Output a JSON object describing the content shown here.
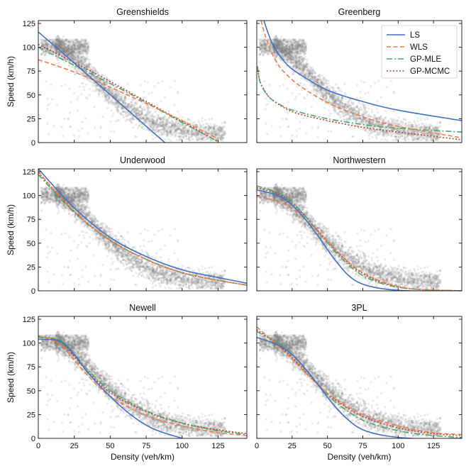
{
  "chart_data": {
    "type": "scatter",
    "layout": "3x2 grid of panels",
    "xlabel": "Density (veh/km)",
    "ylabel": "Speed (km/h)",
    "xlim": [
      0,
      145
    ],
    "ylim": [
      0,
      128
    ],
    "x_ticks": [
      0,
      25,
      50,
      75,
      100,
      125
    ],
    "y_ticks": [
      0,
      25,
      50,
      75,
      100,
      125
    ],
    "legend": {
      "placement": "top-right of Greenberg panel",
      "entries": [
        {
          "name": "LS",
          "color": "#4472c4",
          "style": "solid"
        },
        {
          "name": "WLS",
          "color": "#ed7d4a",
          "style": "dashed"
        },
        {
          "name": "GP-MLE",
          "color": "#4ca86a",
          "style": "dashdot"
        },
        {
          "name": "GP-MCMC",
          "color": "#c0403a",
          "style": "dotted"
        }
      ]
    },
    "scatter_color": "#7f7f7f",
    "panels": [
      {
        "title": "Greenshields",
        "series": [
          {
            "name": "LS",
            "x": [
              0,
              20,
              40,
              60,
              80,
              88
            ],
            "y": [
              116,
              90,
              63.5,
              37,
              10.5,
              0
            ]
          },
          {
            "name": "WLS",
            "x": [
              0,
              25,
              50,
              75,
              100,
              125
            ],
            "y": [
              87,
              74,
              58,
              41,
              23,
              4
            ]
          },
          {
            "name": "GP-MLE",
            "x": [
              0,
              25,
              50,
              75,
              100,
              125
            ],
            "y": [
              100,
              81,
              62,
              42,
              21,
              1
            ]
          },
          {
            "name": "GP-MCMC",
            "x": [
              0,
              25,
              50,
              75,
              100,
              125
            ],
            "y": [
              103,
              84,
              64,
              43,
              22,
              1
            ]
          }
        ]
      },
      {
        "title": "Greenberg",
        "series": [
          {
            "name": "LS",
            "x": [
              5,
              8,
              12,
              20,
              30,
              50,
              75,
              100,
              145
            ],
            "y": [
              128,
              115,
              101,
              84,
              72,
              55,
              43,
              34,
              23
            ]
          },
          {
            "name": "WLS",
            "x": [
              3,
              6,
              10,
              15,
              20,
              30,
              50,
              75,
              100,
              145
            ],
            "y": [
              128,
              112,
              96,
              82,
              73,
              60,
              42,
              27,
              17,
              5
            ]
          },
          {
            "name": "GP-MLE",
            "x": [
              0.5,
              2,
              5,
              10,
              20,
              30,
              50,
              75,
              100,
              145
            ],
            "y": [
              80,
              65,
              55,
              46,
              37,
              32,
              25,
              19,
              15,
              11
            ]
          },
          {
            "name": "GP-MCMC",
            "x": [
              0.5,
              2,
              5,
              10,
              20,
              30,
              50,
              75,
              100,
              145
            ],
            "y": [
              80,
              66,
              56,
              46,
              36,
              30,
              23,
              16,
              11,
              3
            ]
          }
        ]
      },
      {
        "title": "Underwood",
        "series": [
          {
            "name": "LS",
            "x": [
              0,
              25,
              50,
              75,
              100,
              125,
              145
            ],
            "y": [
              128,
              87,
              56,
              36,
              22,
              14,
              8
            ]
          },
          {
            "name": "WLS",
            "x": [
              0,
              25,
              50,
              75,
              100,
              125,
              145
            ],
            "y": [
              125,
              83,
              53,
              33,
              19,
              11,
              6
            ]
          },
          {
            "name": "GP-MLE",
            "x": [
              0,
              25,
              50,
              75,
              100,
              125,
              145
            ],
            "y": [
              122,
              82,
              53,
              33,
              19,
              11,
              6
            ]
          },
          {
            "name": "GP-MCMC",
            "x": [
              0,
              25,
              50,
              75,
              100,
              125,
              145
            ],
            "y": [
              124,
              83,
              53,
              33,
              19,
              11,
              6
            ]
          }
        ]
      },
      {
        "title": "Northwestern",
        "series": [
          {
            "name": "LS",
            "x": [
              0,
              15,
              25,
              35,
              45,
              55,
              65,
              75,
              90,
              110,
              145
            ],
            "y": [
              106,
              100,
              90,
              74,
              54,
              33,
              16,
              7,
              2,
              0,
              0
            ]
          },
          {
            "name": "WLS",
            "x": [
              0,
              15,
              25,
              35,
              45,
              55,
              65,
              75,
              90,
              110,
              145
            ],
            "y": [
              99,
              94,
              86,
              74,
              59,
              44,
              30,
              19,
              9,
              2,
              0
            ]
          },
          {
            "name": "GP-MLE",
            "x": [
              0,
              15,
              25,
              35,
              45,
              55,
              65,
              75,
              90,
              110,
              145
            ],
            "y": [
              110,
              103,
              93,
              77,
              59,
              42,
              27,
              16,
              7,
              2,
              0
            ]
          },
          {
            "name": "GP-MCMC",
            "x": [
              0,
              15,
              25,
              35,
              45,
              55,
              65,
              75,
              90,
              110,
              145
            ],
            "y": [
              108,
              102,
              92,
              77,
              60,
              44,
              29,
              18,
              8,
              2,
              0
            ]
          }
        ]
      },
      {
        "title": "Newell",
        "series": [
          {
            "name": "LS",
            "x": [
              0,
              15,
              25,
              35,
              50,
              65,
              80,
              100
            ],
            "y": [
              104,
              102,
              88,
              68,
              44,
              24,
              10,
              0
            ]
          },
          {
            "name": "WLS",
            "x": [
              0,
              15,
              25,
              35,
              50,
              75,
              100,
              125,
              145
            ],
            "y": [
              108,
              99,
              82,
              65,
              44,
              24,
              13,
              6,
              3
            ]
          },
          {
            "name": "GP-MLE",
            "x": [
              0,
              15,
              25,
              35,
              50,
              75,
              100,
              125,
              145
            ],
            "y": [
              106,
              103,
              88,
              71,
              50,
              29,
              16,
              8,
              4
            ]
          },
          {
            "name": "GP-MCMC",
            "x": [
              0,
              15,
              25,
              35,
              50,
              75,
              100,
              125,
              145
            ],
            "y": [
              107,
              102,
              86,
              69,
              48,
              28,
              16,
              9,
              5
            ]
          }
        ]
      },
      {
        "title": "3PL",
        "series": [
          {
            "name": "LS",
            "x": [
              0,
              15,
              25,
              35,
              45,
              55,
              65,
              75,
              90,
              110,
              145
            ],
            "y": [
              106,
              98,
              88,
              72,
              53,
              34,
              19,
              9,
              3,
              0,
              0
            ]
          },
          {
            "name": "WLS",
            "x": [
              0,
              15,
              25,
              35,
              45,
              55,
              75,
              100,
              125,
              145
            ],
            "y": [
              117,
              97,
              83,
              68,
              54,
              42,
              25,
              13,
              6,
              4
            ]
          },
          {
            "name": "GP-MLE",
            "x": [
              0,
              15,
              25,
              35,
              45,
              55,
              75,
              100,
              125,
              145
            ],
            "y": [
              112,
              100,
              88,
              71,
              54,
              39,
              19,
              8,
              3,
              1
            ]
          },
          {
            "name": "GP-MCMC",
            "x": [
              0,
              15,
              25,
              35,
              45,
              55,
              75,
              100,
              125,
              145
            ],
            "y": [
              114,
              98,
              85,
              69,
              54,
              41,
              23,
              11,
              5,
              3
            ]
          }
        ]
      }
    ]
  }
}
